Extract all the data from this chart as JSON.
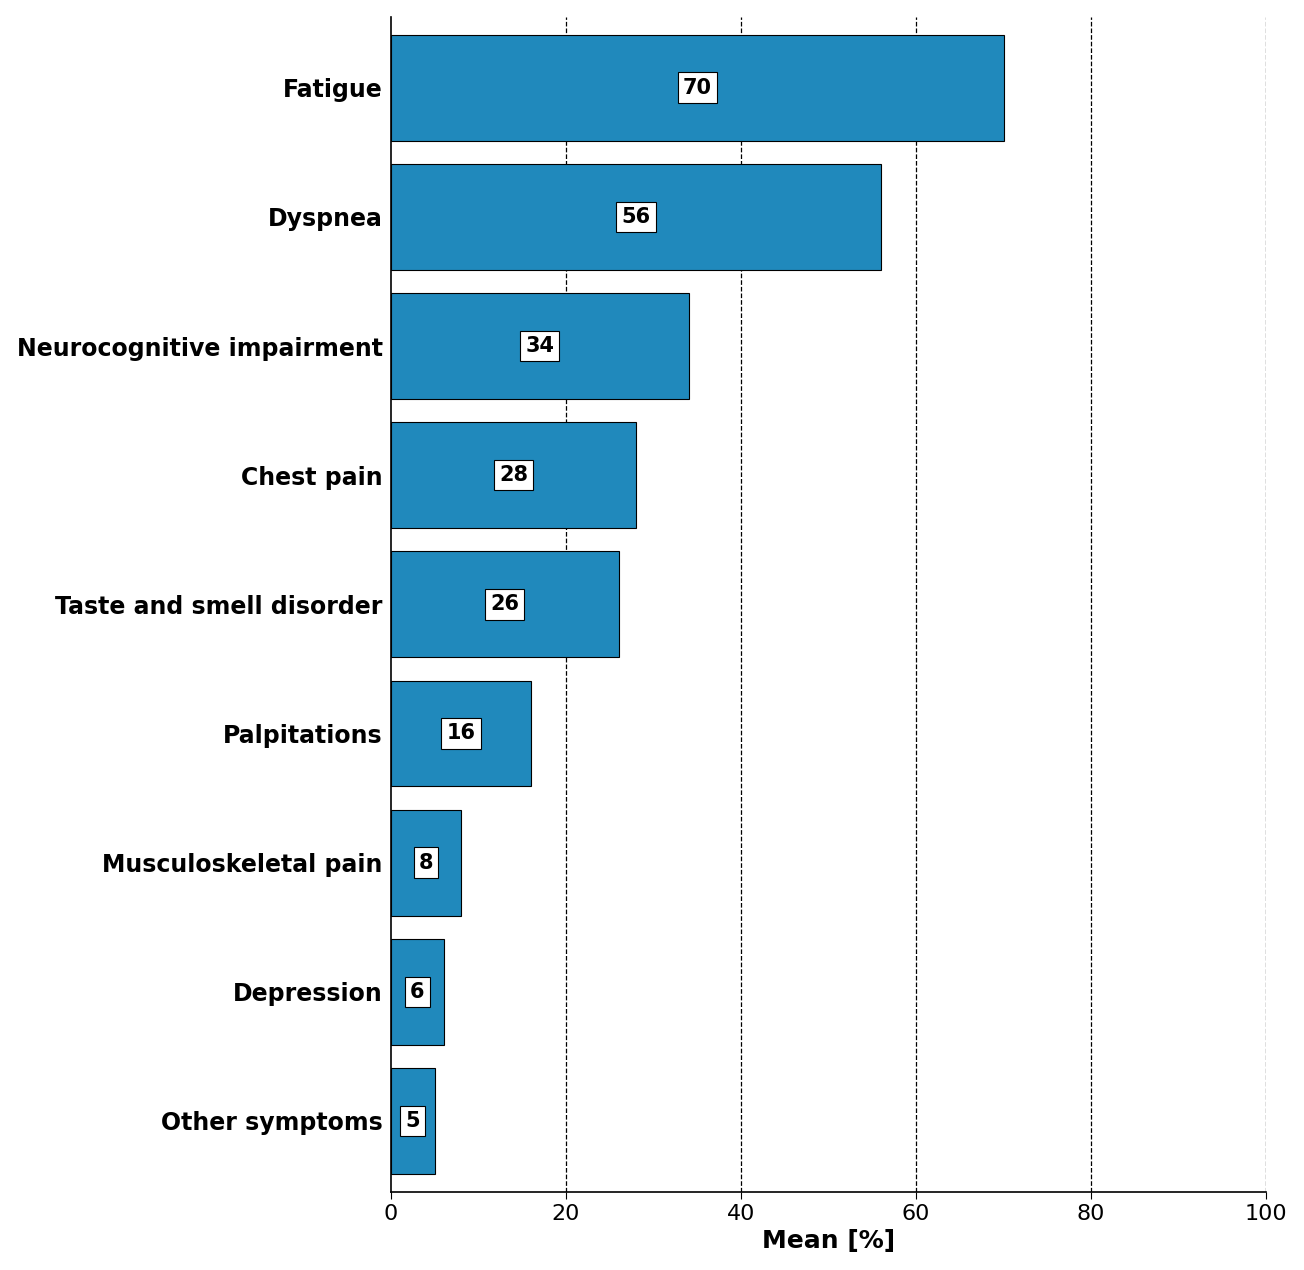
{
  "categories": [
    "Fatigue",
    "Dyspnea",
    "Neurocognitive impairment",
    "Chest pain",
    "Taste and smell disorder",
    "Palpitations",
    "Musculoskeletal pain",
    "Depression",
    "Other symptoms"
  ],
  "values": [
    70,
    56,
    34,
    28,
    26,
    16,
    8,
    6,
    5
  ],
  "bar_color": "#2089bc",
  "xlabel": "Mean [%]",
  "xlim": [
    0,
    100
  ],
  "xticks": [
    0,
    20,
    40,
    60,
    80,
    100
  ],
  "grid_lines": [
    20,
    40,
    60,
    80,
    100
  ],
  "background_color": "#ffffff",
  "label_fontsize": 17,
  "tick_fontsize": 16,
  "xlabel_fontsize": 18,
  "value_fontsize": 15,
  "bar_height": 0.82
}
